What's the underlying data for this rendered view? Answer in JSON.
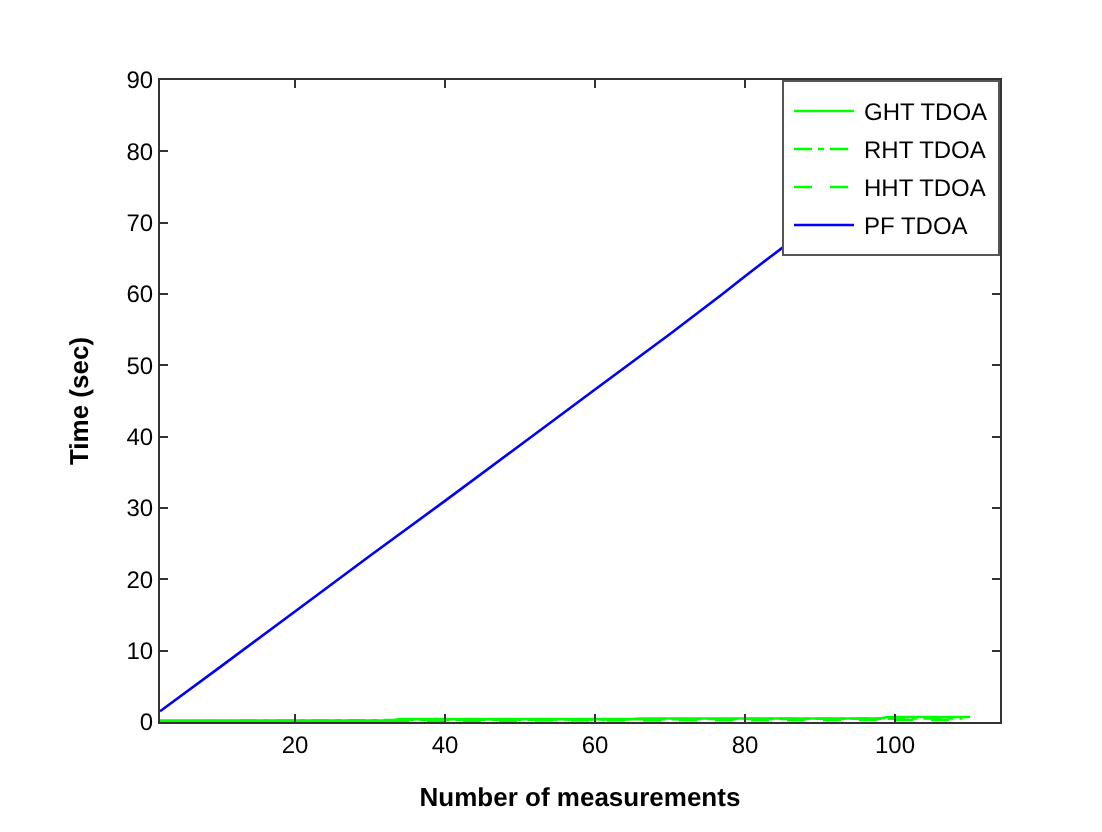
{
  "chart_data": {
    "type": "line",
    "xlabel": "Number of measurements",
    "ylabel": "Time (sec)",
    "xlim": [
      2,
      114
    ],
    "xticks": [
      20,
      40,
      60,
      80,
      100
    ],
    "ylim": [
      0,
      90
    ],
    "yticks": [
      0,
      10,
      20,
      30,
      40,
      50,
      60,
      70,
      80,
      90
    ],
    "grid": false,
    "legend": "top right",
    "marker": "none",
    "series": [
      {
        "name": "GHT TDOA",
        "color": "#00ff00",
        "line_style": "solid",
        "x": [
          2,
          33,
          34,
          65,
          66,
          98,
          99,
          110
        ],
        "values": [
          0.2,
          0.2,
          0.4,
          0.4,
          0.5,
          0.5,
          0.7,
          0.7
        ]
      },
      {
        "name": "RHT TDOA",
        "color": "#00ff00",
        "line_style": "dashdot",
        "x": [
          3,
          40,
          70,
          109
        ],
        "values": [
          0.1,
          0.3,
          0.4,
          0.5
        ]
      },
      {
        "name": "HHT TDOA",
        "color": "#00ff00",
        "line_style": "dashed",
        "x": [
          4,
          50,
          108
        ],
        "values": [
          0,
          0.2,
          0.3
        ]
      },
      {
        "name": "PF TDOA",
        "color": "#0000ff",
        "line_style": "solid",
        "x": [
          2,
          10,
          20,
          30,
          40,
          50,
          60,
          70,
          77,
          80,
          85
        ],
        "values": [
          1.5,
          7.7,
          15.5,
          23.3,
          31,
          38.8,
          46.6,
          54.4,
          60,
          62.5,
          66.5
        ]
      }
    ]
  }
}
